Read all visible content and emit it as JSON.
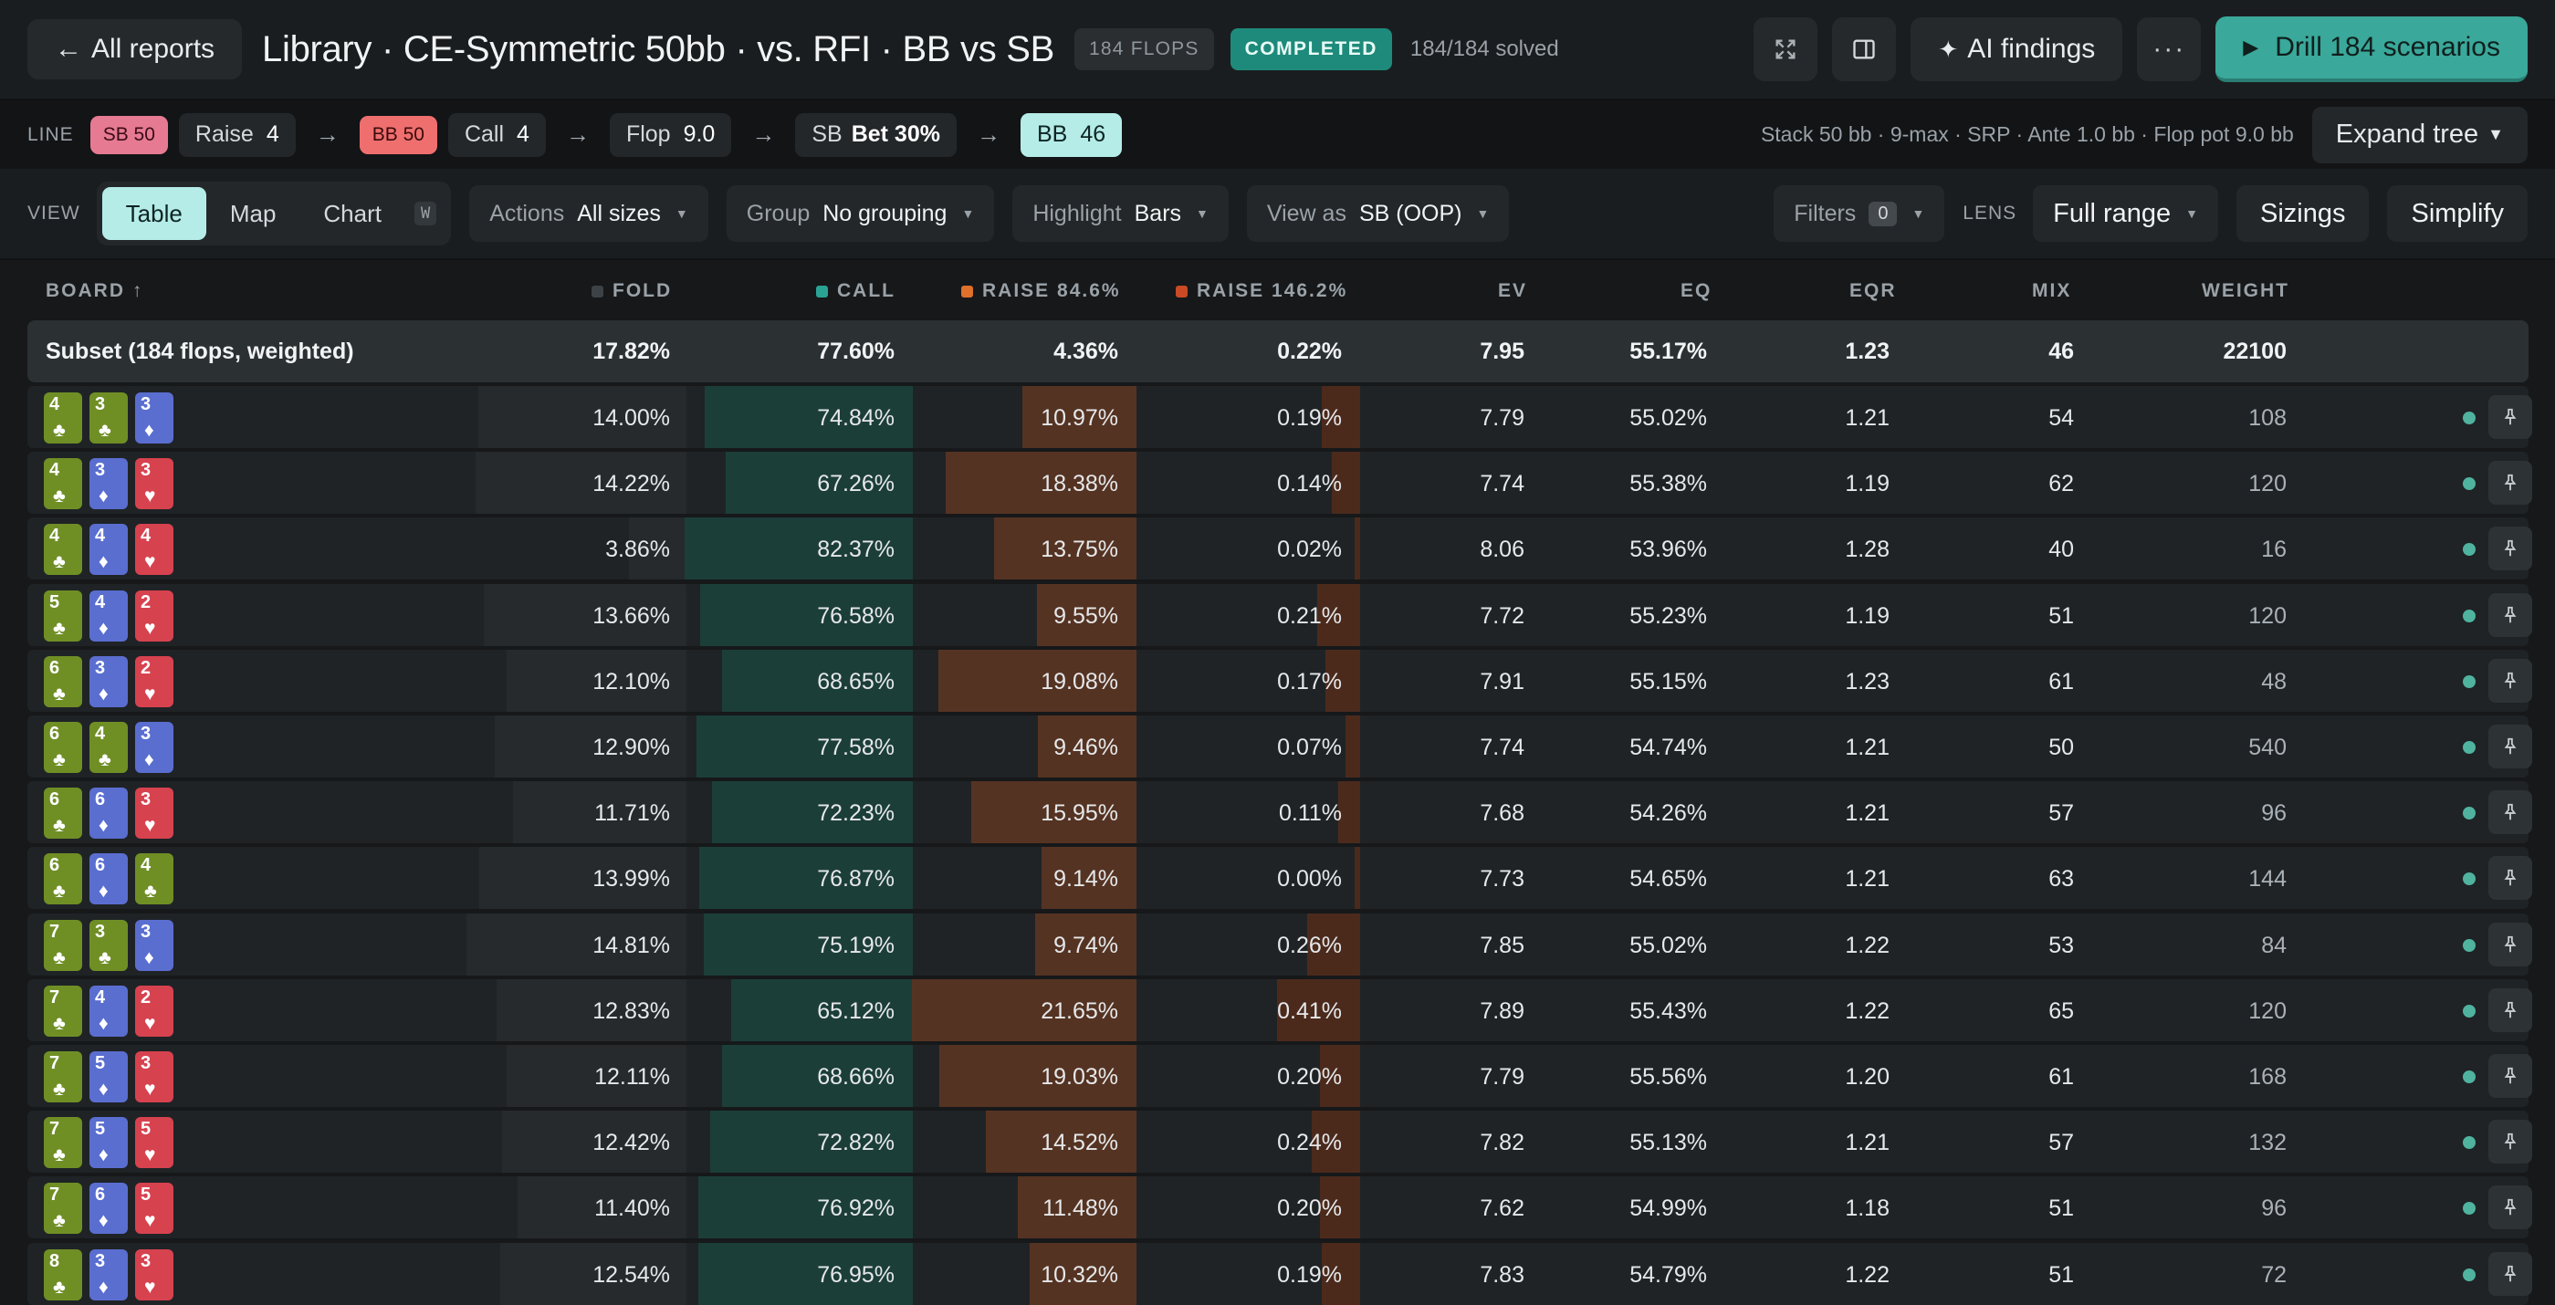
{
  "topbar": {
    "back_label": "All reports",
    "back_arrow": "←",
    "title": "Library · CE-Symmetric 50bb · vs. RFI · BB vs SB",
    "flops_badge": "184 FLOPS",
    "status": "COMPLETED",
    "solved": "184/184 solved",
    "ai_label": "AI findings",
    "more_label": "···",
    "drill_label": "Drill 184 scenarios"
  },
  "line": {
    "label": "LINE",
    "chips": [
      {
        "text": "SB 50"
      },
      {
        "text": "Raise",
        "num": "4"
      },
      {
        "text": "BB 50"
      },
      {
        "text": "Call",
        "num": "4"
      },
      {
        "text": "Flop",
        "num": "9.0"
      },
      {
        "text": "SB",
        "bold": "Bet 30%"
      },
      {
        "text": "BB",
        "num": "46"
      }
    ],
    "arrow": "→",
    "stack_info": "Stack 50 bb · 9-max · SRP · Ante 1.0 bb · Flop pot 9.0 bb",
    "expand_label": "Expand tree"
  },
  "view": {
    "label": "VIEW",
    "tabs": [
      "Table",
      "Map",
      "Chart"
    ],
    "shortcut": "W",
    "actions_label": "Actions",
    "actions_value": "All sizes",
    "group_label": "Group",
    "group_value": "No grouping",
    "highlight_label": "Highlight",
    "highlight_value": "Bars",
    "viewas_label": "View as",
    "viewas_value": "SB (OOP)",
    "filters_label": "Filters",
    "filters_count": "0",
    "lens_label": "LENS",
    "range_value": "Full range",
    "sizings_label": "Sizings",
    "simplify_label": "Simplify"
  },
  "table": {
    "headers": {
      "board": "BOARD ↑",
      "fold": "FOLD",
      "call": "CALL",
      "raise1": "RAISE 84.6%",
      "raise2": "RAISE 146.2%",
      "ev": "EV",
      "eq": "EQ",
      "eqr": "EQR",
      "mix": "MIX",
      "weight": "WEIGHT"
    },
    "colors": {
      "fold": "#3d4246",
      "call": "#2aa394",
      "raise1": "#e0702a",
      "raise2": "#c94a24"
    },
    "subset": {
      "label": "Subset (184 flops, weighted)",
      "fold": "17.82%",
      "call": "77.60%",
      "raise1": "4.36%",
      "raise2": "0.22%",
      "ev": "7.95",
      "eq": "55.17%",
      "eqr": "1.23",
      "mix": "46",
      "weight": "22100"
    },
    "rows": [
      {
        "cards": [
          [
            "4",
            "clubs"
          ],
          [
            "3",
            "clubs"
          ],
          [
            "3",
            "diamonds"
          ]
        ],
        "fold": "14.00%",
        "call": "74.84%",
        "raise1": "10.97%",
        "raise2": "0.19%",
        "ev": "7.79",
        "eq": "55.02%",
        "eqr": "1.21",
        "mix": "54",
        "weight": "108"
      },
      {
        "cards": [
          [
            "4",
            "clubs"
          ],
          [
            "3",
            "diamonds"
          ],
          [
            "3",
            "hearts"
          ]
        ],
        "fold": "14.22%",
        "call": "67.26%",
        "raise1": "18.38%",
        "raise2": "0.14%",
        "ev": "7.74",
        "eq": "55.38%",
        "eqr": "1.19",
        "mix": "62",
        "weight": "120"
      },
      {
        "cards": [
          [
            "4",
            "clubs"
          ],
          [
            "4",
            "diamonds"
          ],
          [
            "4",
            "hearts"
          ]
        ],
        "fold": "3.86%",
        "call": "82.37%",
        "raise1": "13.75%",
        "raise2": "0.02%",
        "ev": "8.06",
        "eq": "53.96%",
        "eqr": "1.28",
        "mix": "40",
        "weight": "16"
      },
      {
        "cards": [
          [
            "5",
            "clubs"
          ],
          [
            "4",
            "diamonds"
          ],
          [
            "2",
            "hearts"
          ]
        ],
        "fold": "13.66%",
        "call": "76.58%",
        "raise1": "9.55%",
        "raise2": "0.21%",
        "ev": "7.72",
        "eq": "55.23%",
        "eqr": "1.19",
        "mix": "51",
        "weight": "120"
      },
      {
        "cards": [
          [
            "6",
            "clubs"
          ],
          [
            "3",
            "diamonds"
          ],
          [
            "2",
            "hearts"
          ]
        ],
        "fold": "12.10%",
        "call": "68.65%",
        "raise1": "19.08%",
        "raise2": "0.17%",
        "ev": "7.91",
        "eq": "55.15%",
        "eqr": "1.23",
        "mix": "61",
        "weight": "48"
      },
      {
        "cards": [
          [
            "6",
            "clubs"
          ],
          [
            "4",
            "clubs"
          ],
          [
            "3",
            "diamonds"
          ]
        ],
        "fold": "12.90%",
        "call": "77.58%",
        "raise1": "9.46%",
        "raise2": "0.07%",
        "ev": "7.74",
        "eq": "54.74%",
        "eqr": "1.21",
        "mix": "50",
        "weight": "540"
      },
      {
        "cards": [
          [
            "6",
            "clubs"
          ],
          [
            "6",
            "diamonds"
          ],
          [
            "3",
            "hearts"
          ]
        ],
        "fold": "11.71%",
        "call": "72.23%",
        "raise1": "15.95%",
        "raise2": "0.11%",
        "ev": "7.68",
        "eq": "54.26%",
        "eqr": "1.21",
        "mix": "57",
        "weight": "96"
      },
      {
        "cards": [
          [
            "6",
            "clubs"
          ],
          [
            "6",
            "diamonds"
          ],
          [
            "4",
            "clubs"
          ]
        ],
        "fold": "13.99%",
        "call": "76.87%",
        "raise1": "9.14%",
        "raise2": "0.00%",
        "ev": "7.73",
        "eq": "54.65%",
        "eqr": "1.21",
        "mix": "63",
        "weight": "144"
      },
      {
        "cards": [
          [
            "7",
            "clubs"
          ],
          [
            "3",
            "clubs"
          ],
          [
            "3",
            "diamonds"
          ]
        ],
        "fold": "14.81%",
        "call": "75.19%",
        "raise1": "9.74%",
        "raise2": "0.26%",
        "ev": "7.85",
        "eq": "55.02%",
        "eqr": "1.22",
        "mix": "53",
        "weight": "84"
      },
      {
        "cards": [
          [
            "7",
            "clubs"
          ],
          [
            "4",
            "diamonds"
          ],
          [
            "2",
            "hearts"
          ]
        ],
        "fold": "12.83%",
        "call": "65.12%",
        "raise1": "21.65%",
        "raise2": "0.41%",
        "ev": "7.89",
        "eq": "55.43%",
        "eqr": "1.22",
        "mix": "65",
        "weight": "120"
      },
      {
        "cards": [
          [
            "7",
            "clubs"
          ],
          [
            "5",
            "diamonds"
          ],
          [
            "3",
            "hearts"
          ]
        ],
        "fold": "12.11%",
        "call": "68.66%",
        "raise1": "19.03%",
        "raise2": "0.20%",
        "ev": "7.79",
        "eq": "55.56%",
        "eqr": "1.20",
        "mix": "61",
        "weight": "168"
      },
      {
        "cards": [
          [
            "7",
            "clubs"
          ],
          [
            "5",
            "diamonds"
          ],
          [
            "5",
            "hearts"
          ]
        ],
        "fold": "12.42%",
        "call": "72.82%",
        "raise1": "14.52%",
        "raise2": "0.24%",
        "ev": "7.82",
        "eq": "55.13%",
        "eqr": "1.21",
        "mix": "57",
        "weight": "132"
      },
      {
        "cards": [
          [
            "7",
            "clubs"
          ],
          [
            "6",
            "diamonds"
          ],
          [
            "5",
            "hearts"
          ]
        ],
        "fold": "11.40%",
        "call": "76.92%",
        "raise1": "11.48%",
        "raise2": "0.20%",
        "ev": "7.62",
        "eq": "54.99%",
        "eqr": "1.18",
        "mix": "51",
        "weight": "96"
      },
      {
        "cards": [
          [
            "8",
            "clubs"
          ],
          [
            "3",
            "diamonds"
          ],
          [
            "3",
            "hearts"
          ]
        ],
        "fold": "12.54%",
        "call": "76.95%",
        "raise1": "10.32%",
        "raise2": "0.19%",
        "ev": "7.83",
        "eq": "54.79%",
        "eqr": "1.22",
        "mix": "51",
        "weight": "72"
      }
    ]
  },
  "icons": {
    "fullscreen": "fullscreen-icon",
    "panel": "panel-icon",
    "sparkle": "sparkle-icon",
    "more": "more-icon",
    "play": "play-icon",
    "pin": "pin-icon",
    "status_dot": "status-dot-icon"
  }
}
